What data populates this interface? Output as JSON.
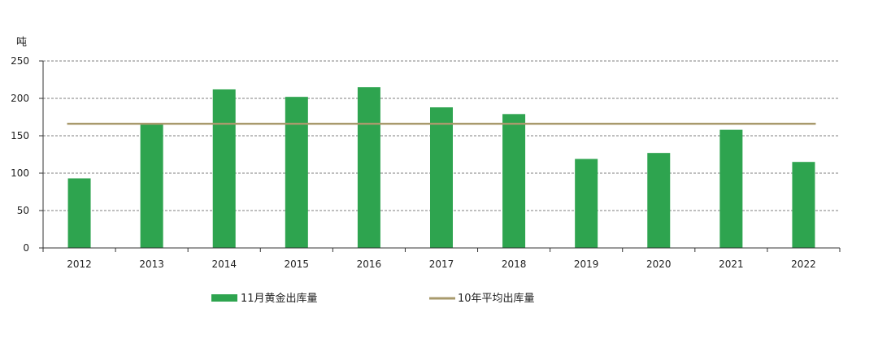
{
  "chart_data": {
    "type": "bar",
    "ylabel": "吨",
    "ylim": [
      0,
      250
    ],
    "yticks": [
      0,
      50,
      100,
      150,
      200,
      250
    ],
    "categories": [
      "2012",
      "2013",
      "2014",
      "2015",
      "2016",
      "2017",
      "2018",
      "2019",
      "2020",
      "2021",
      "2022"
    ],
    "series": [
      {
        "name": "11月黄金出库量",
        "type": "bar",
        "color": "#2ea44f",
        "values": [
          93,
          166,
          212,
          202,
          215,
          188,
          179,
          119,
          127,
          158,
          115
        ]
      },
      {
        "name": "10年平均出库量",
        "type": "line",
        "color": "#a89a6c",
        "values": [
          166,
          166,
          166,
          166,
          166,
          166,
          166,
          166,
          166,
          166,
          166
        ]
      }
    ],
    "grid": true,
    "grid_style": "dashed",
    "legend_position": "bottom"
  }
}
